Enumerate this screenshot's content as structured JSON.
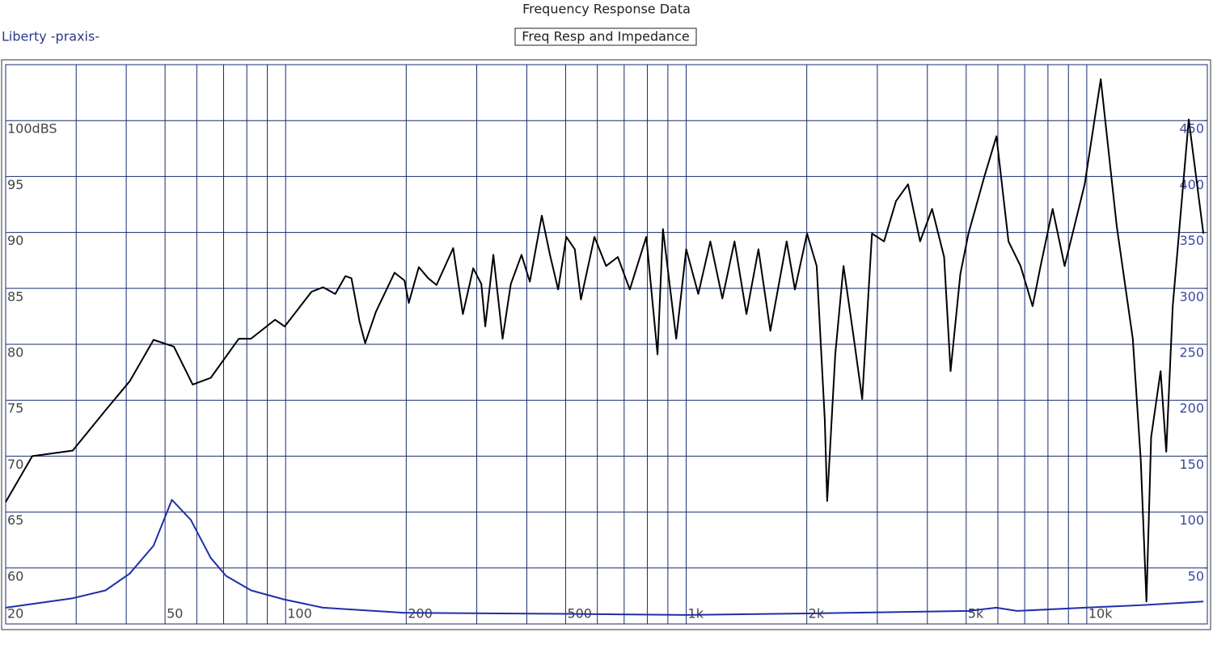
{
  "chart_data": {
    "type": "line",
    "title": "Frequency Response Data",
    "subtitle": "Freq Resp and Impedance",
    "label": "Liberty -praxis-",
    "xscale": "log",
    "xlim": [
      20,
      20000
    ],
    "xticks": [
      20,
      50,
      100,
      200,
      500,
      {
        "value": 1000,
        "label": "1k"
      },
      {
        "value": 2000,
        "label": "2k"
      },
      {
        "value": 5000,
        "label": "5k"
      },
      {
        "value": 10000,
        "label": "10k"
      }
    ],
    "xminorticks": [
      30,
      40,
      60,
      70,
      80,
      90,
      300,
      400,
      600,
      700,
      800,
      900,
      3000,
      4000,
      6000,
      7000,
      8000,
      9000
    ],
    "ylim": [
      55,
      105
    ],
    "yticks": [
      60,
      65,
      70,
      75,
      80,
      85,
      90,
      95,
      {
        "value": 100,
        "label": "100dBS"
      }
    ],
    "y2lim": [
      0,
      500
    ],
    "y2ticks": [
      50,
      100,
      150,
      200,
      250,
      300,
      350,
      400,
      450
    ],
    "grid": true,
    "grid_color": "#1a2a6c",
    "series": [
      {
        "color": "#000000",
        "x": [
          20,
          23.3,
          29.4,
          35.5,
          40.8,
          46.8,
          52.6,
          58.6,
          65,
          76.4,
          81.9,
          94.1,
          99.5,
          116,
          124,
          133,
          141,
          146,
          153,
          158,
          168,
          187,
          198,
          203,
          215,
          227,
          238,
          262,
          277,
          294,
          308,
          315,
          330,
          348,
          365,
          388,
          407,
          436,
          457,
          479,
          502,
          527,
          546,
          590,
          631,
          675,
          723,
          795,
          848,
          875,
          944,
          1000,
          1072,
          1149,
          1231,
          1320,
          1414,
          1515,
          1622,
          1782,
          1868,
          2003,
          2117,
          2218,
          2249,
          2356,
          2470,
          2622,
          2750,
          2909,
          3118,
          3341,
          3580,
          3836,
          4110,
          4404,
          4571,
          4837,
          5065,
          5553,
          5950,
          6377,
          6833,
          7323,
          7669,
          8218,
          8804,
          9879,
          10840,
          11880,
          13030,
          13640,
          14090,
          14480,
          15290,
          15790,
          16390,
          17970,
          19550
        ],
        "values": [
          65.9,
          70.0,
          70.5,
          74.1,
          76.7,
          80.4,
          79.8,
          76.4,
          77.0,
          80.5,
          80.5,
          82.2,
          81.6,
          84.7,
          85.1,
          84.5,
          86.1,
          85.9,
          82.0,
          80.1,
          82.9,
          86.4,
          85.7,
          83.7,
          86.9,
          85.9,
          85.3,
          88.6,
          82.7,
          86.8,
          85.4,
          81.6,
          88.0,
          80.5,
          85.4,
          88.0,
          85.6,
          91.5,
          88.0,
          84.9,
          89.6,
          88.5,
          84.0,
          89.6,
          87.0,
          87.8,
          84.9,
          89.6,
          79.1,
          90.3,
          80.5,
          88.5,
          84.5,
          89.2,
          84.1,
          89.2,
          82.7,
          88.5,
          81.2,
          89.2,
          84.9,
          89.9,
          87.0,
          73.3,
          66.0,
          79.1,
          87.0,
          80.5,
          75.1,
          89.9,
          89.2,
          92.8,
          94.3,
          89.2,
          92.1,
          87.8,
          77.6,
          86.3,
          89.9,
          95.0,
          98.6,
          89.2,
          87.0,
          83.4,
          87.0,
          92.1,
          87.0,
          94.3,
          103.7,
          90.6,
          80.5,
          69.6,
          57.0,
          71.7,
          77.6,
          70.4,
          83.4,
          100.1,
          89.9
        ]
      },
      {
        "color": "#1f2fa8",
        "axis": "y2",
        "x": [
          20,
          29.4,
          35.5,
          40.8,
          46.8,
          52,
          58,
          65,
          71,
          82,
          99,
          124,
          198,
          502,
          1000,
          2000,
          5065,
          5950,
          6700,
          9879,
          14000,
          19550
        ],
        "values": [
          14.5,
          23,
          30,
          45,
          70,
          111,
          93,
          59,
          43,
          30,
          22,
          14.5,
          10,
          9,
          8,
          9.4,
          11.6,
          14.5,
          11.6,
          14.5,
          17,
          20
        ]
      }
    ]
  }
}
